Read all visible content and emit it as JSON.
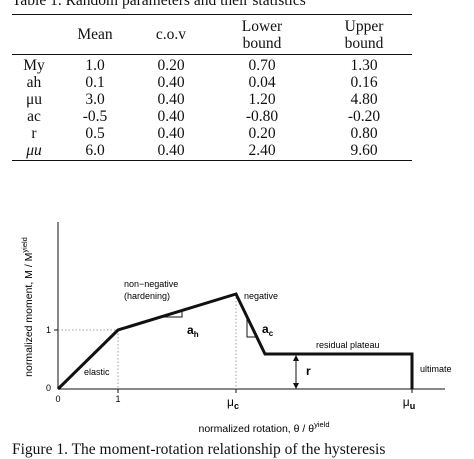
{
  "table": {
    "caption": "Table 1. Random parameters and their statistics",
    "headers": [
      "",
      "Mean",
      "c.o.v",
      "Lower bound",
      "Upper bound"
    ],
    "header_lines": [
      [
        "",
        "",
        "",
        "Lower",
        "Upper"
      ],
      [
        "",
        "Mean",
        "c.o.v",
        "bound",
        "bound"
      ]
    ],
    "rows": [
      [
        "My",
        "1.0",
        "0.20",
        "0.70",
        "1.30"
      ],
      [
        "ah",
        "0.1",
        "0.40",
        "0.04",
        "0.16"
      ],
      [
        "μu",
        "3.0",
        "0.40",
        "1.20",
        "4.80"
      ],
      [
        "ac",
        "-0.5",
        "0.40",
        "-0.80",
        "-0.20"
      ],
      [
        "r",
        "0.5",
        "0.40",
        "0.20",
        "0.80"
      ],
      [
        "μu",
        "6.0",
        "0.40",
        "2.40",
        "9.60"
      ]
    ]
  },
  "figure": {
    "ylabel": "normalized moment, M / M",
    "ylabel_sup": "yield",
    "xlabel": "normalized rotation, θ / θ",
    "xlabel_sup": "yield",
    "y_ticks": [
      "0",
      "1"
    ],
    "x_ticks": [
      "0",
      "1"
    ],
    "mu_c": "μ",
    "mu_c_sub": "c",
    "mu_u": "μ",
    "mu_u_sub": "u",
    "labels": {
      "elastic": "elastic",
      "nonneg1": "non−negative",
      "nonneg2": "(hardening)",
      "negative": "negative",
      "residual": "residual plateau",
      "ultimate": "ultimate",
      "ah": "a",
      "ah_sub": "h",
      "ac": "a",
      "ac_sub": "c",
      "r": "r"
    },
    "caption": "Figure 1. The moment-rotation relationship of the hysteresis"
  }
}
